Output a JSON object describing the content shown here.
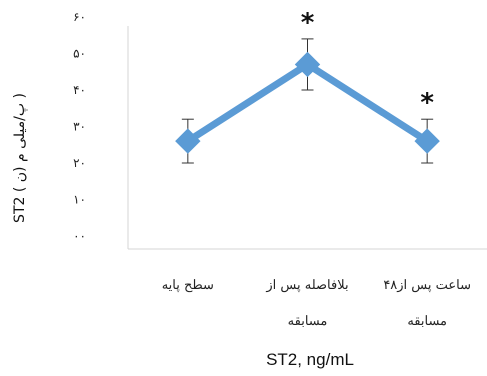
{
  "chart_data": {
    "type": "line",
    "categories": [
      [
        "سطح پایه"
      ],
      [
        "بلافاصله پس از",
        "مسابقه"
      ],
      [
        "۴۸ساعت پس از",
        "مسابقه"
      ]
    ],
    "series": [
      {
        "values": [
          26,
          47,
          26
        ],
        "error": [
          6,
          7,
          6
        ],
        "color": "#5B9BD5"
      }
    ],
    "significance": [
      "",
      "*",
      "*"
    ],
    "y_ticks": [
      "٠٠",
      "١٠",
      "٢٠",
      "٣٠",
      "۴٠",
      "۵٠",
      "۶٠"
    ],
    "ylim": [
      0,
      60
    ],
    "ylabel": "ST2 (   ن)   پ/میلی   م   )",
    "xlabel": "ST2, ng/mL",
    "grid": false
  }
}
